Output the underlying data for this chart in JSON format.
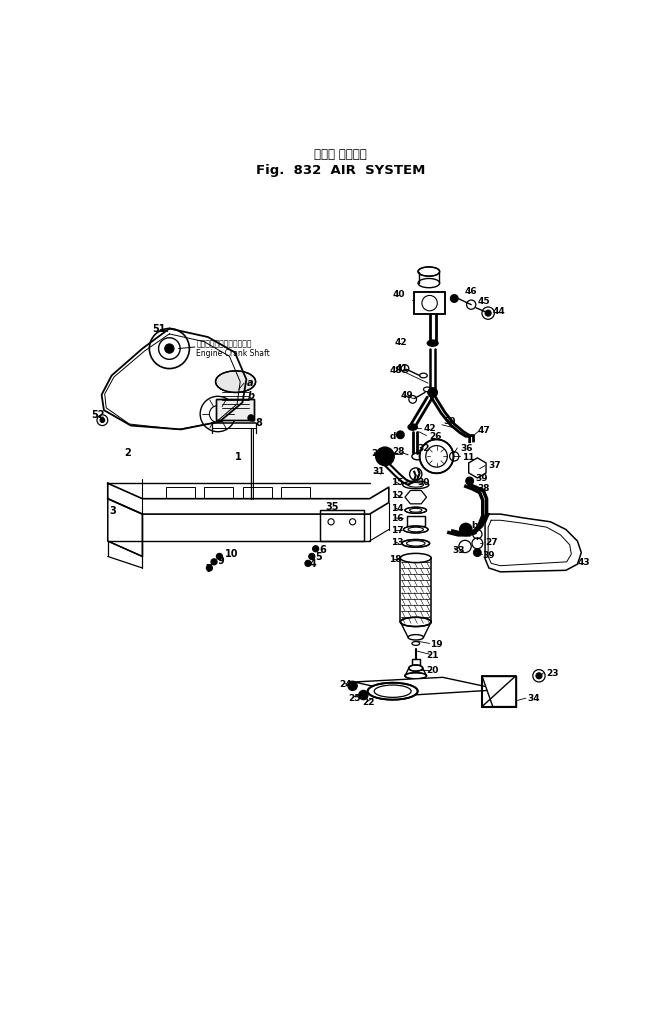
{
  "title_japanese": "エアー システム",
  "title_english": "Fig.  832  AIR  SYSTEM",
  "bg_color": "#ffffff",
  "fig_width": 6.64,
  "fig_height": 10.2,
  "engine_crank_ja": "エンジンクランクシャフト",
  "engine_crank_en": "Engine Crank Shaft"
}
